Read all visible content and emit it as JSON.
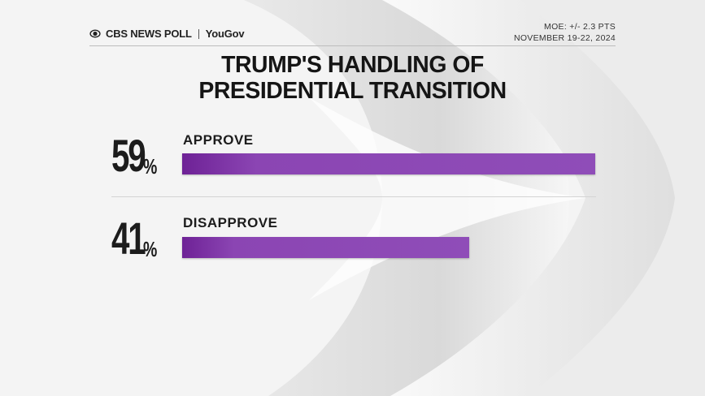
{
  "header": {
    "brand_left": "CBS NEWS POLL",
    "brand_right": "YouGov",
    "moe": "MOE: +/- 2.3 PTS",
    "dates": "NOVEMBER 19-22, 2024"
  },
  "colors": {
    "bar": "#8f4db8",
    "bar_dark": "#6e2296",
    "text": "#1c1c1c",
    "background": "#f3f3f3"
  },
  "chart_data": {
    "type": "bar",
    "orientation": "horizontal",
    "title": "TRUMP'S HANDLING OF PRESIDENTIAL TRANSITION",
    "title_lines": [
      "TRUMP'S HANDLING OF",
      "PRESIDENTIAL TRANSITION"
    ],
    "categories": [
      "APPROVE",
      "DISAPPROVE"
    ],
    "values": [
      59,
      41
    ],
    "value_labels": [
      "59",
      "41"
    ],
    "unit": "%",
    "xlim": [
      0,
      59
    ],
    "grid": false
  }
}
